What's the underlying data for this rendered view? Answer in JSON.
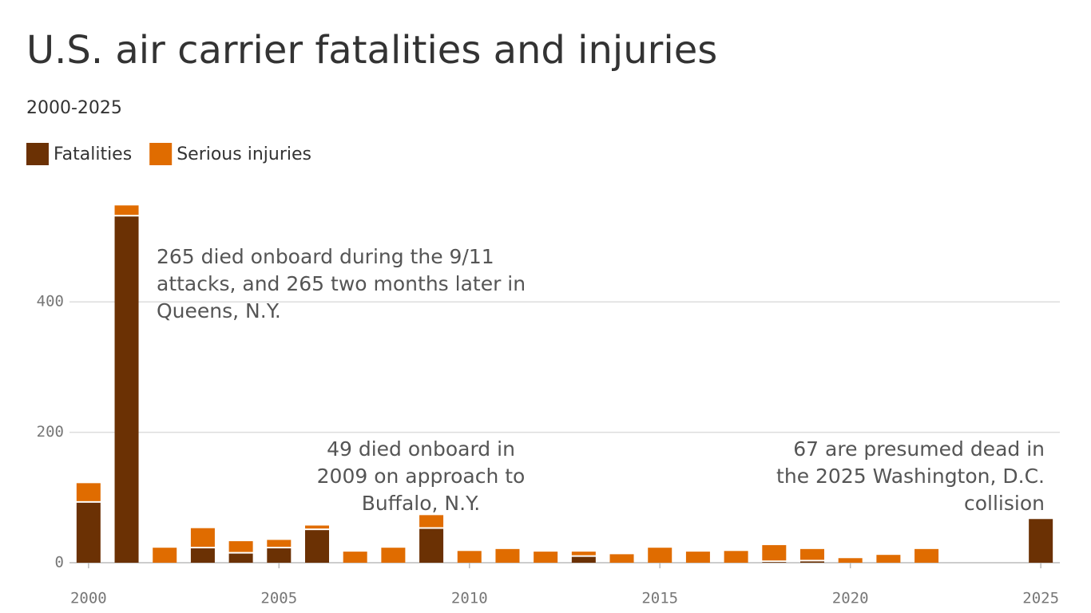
{
  "chart_data": {
    "type": "stacked-bar",
    "title": "U.S. air carrier fatalities and injuries",
    "subtitle": "2000-2025",
    "x": [
      2000,
      2001,
      2002,
      2003,
      2004,
      2005,
      2006,
      2007,
      2008,
      2009,
      2010,
      2011,
      2012,
      2013,
      2014,
      2015,
      2016,
      2017,
      2018,
      2019,
      2020,
      2021,
      2022,
      2023,
      2024,
      2025
    ],
    "series": [
      {
        "name": "Fatalities",
        "color": "#6b3104",
        "values": [
          92,
          531,
          0,
          22,
          14,
          22,
          50,
          0,
          0,
          52,
          0,
          0,
          0,
          9,
          0,
          0,
          0,
          0,
          1,
          2,
          0,
          0,
          0,
          0,
          0,
          67
        ]
      },
      {
        "name": "Serious injuries",
        "color": "#e06c00",
        "values": [
          30,
          17,
          23,
          31,
          19,
          13,
          7,
          17,
          23,
          21,
          18,
          21,
          17,
          8,
          13,
          23,
          17,
          18,
          26,
          19,
          7,
          12,
          21,
          0,
          0,
          0
        ]
      }
    ],
    "xlim": [
      1999.5,
      2025.5
    ],
    "xticks": [
      2000,
      2005,
      2010,
      2015,
      2020,
      2025
    ],
    "ylim": [
      0,
      557
    ],
    "yticks": [
      0,
      200,
      400
    ],
    "grid": true,
    "annotations": [
      {
        "text": [
          "265 died onboard during the 9/11",
          "attacks, and 265 two months later in",
          "Queens, N.Y."
        ]
      },
      {
        "text": [
          "49 died onboard in",
          "2009 on approach to",
          "Buffalo, N.Y."
        ]
      },
      {
        "text": [
          "67 are presumed dead in",
          "the 2025 Washington, D.C.",
          "collision"
        ]
      }
    ]
  }
}
